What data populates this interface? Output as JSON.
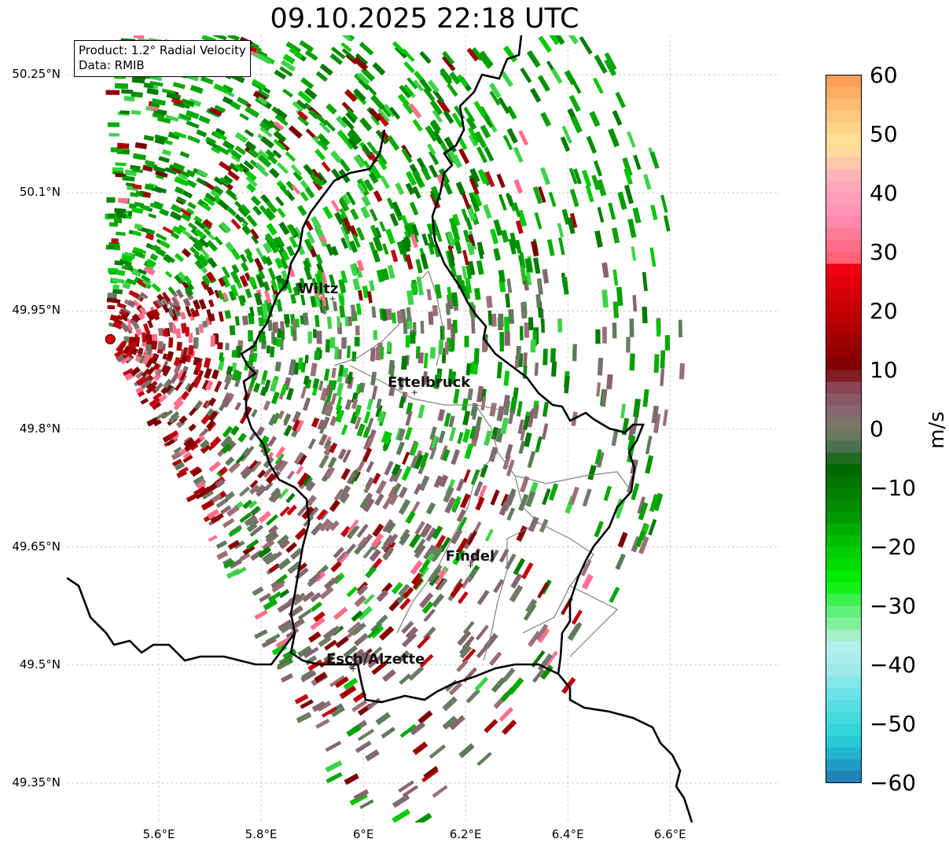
{
  "title": "09.10.2025 22:18 UTC",
  "info_box": {
    "product": "Product: 1.2° Radial Velocity",
    "data": "Data: RMIB"
  },
  "cities": [
    {
      "name": "Wiltz",
      "lon": 5.94,
      "lat": 49.966
    },
    {
      "name": "Ettelbruck",
      "lon": 6.1,
      "lat": 49.847
    },
    {
      "name": "Findel",
      "lon": 6.21,
      "lat": 49.627
    },
    {
      "name": "Esch/Alzette",
      "lon": 5.98,
      "lat": 49.496
    }
  ],
  "radar_site": {
    "lon": 5.505,
    "lat": 49.914
  },
  "axes": {
    "lon_range": [
      5.42,
      6.815
    ],
    "lat_range": [
      49.3,
      50.3
    ],
    "x_ticks": [
      "5.6°E",
      "5.8°E",
      "6°E",
      "6.2°E",
      "6.4°E",
      "6.6°E"
    ],
    "x_tick_values": [
      5.6,
      5.8,
      6.0,
      6.2,
      6.4,
      6.6
    ],
    "y_ticks": [
      "50.25°N",
      "50.1°N",
      "49.95°N",
      "49.8°N",
      "49.65°N",
      "49.5°N",
      "49.35°N"
    ],
    "y_tick_values": [
      50.25,
      50.1,
      49.95,
      49.8,
      49.65,
      49.5,
      49.35
    ]
  },
  "colorbar": {
    "label": "m/s",
    "vmin": -60,
    "vmax": 60,
    "ticks": [
      "60",
      "50",
      "40",
      "30",
      "20",
      "10",
      "0",
      "−10",
      "−20",
      "−30",
      "−40",
      "−50",
      "−60"
    ],
    "tick_values": [
      60,
      50,
      40,
      30,
      20,
      10,
      0,
      -10,
      -20,
      -30,
      -40,
      -50,
      -60
    ],
    "stops": [
      {
        "v": -60,
        "c": "#1f77b4"
      },
      {
        "v": -56,
        "c": "#22a8cc"
      },
      {
        "v": -52,
        "c": "#2ad6d8"
      },
      {
        "v": -46,
        "c": "#5fe0e2"
      },
      {
        "v": -40,
        "c": "#a8ecee"
      },
      {
        "v": -36,
        "c": "#b6f0ea"
      },
      {
        "v": -34,
        "c": "#8ff0a8"
      },
      {
        "v": -30,
        "c": "#52f06a"
      },
      {
        "v": -26,
        "c": "#00f000"
      },
      {
        "v": -20,
        "c": "#00c800"
      },
      {
        "v": -14,
        "c": "#008f00"
      },
      {
        "v": -6,
        "c": "#006400"
      },
      {
        "v": -4,
        "c": "#3f6f45"
      },
      {
        "v": 0,
        "c": "#787a6a"
      },
      {
        "v": 4,
        "c": "#8b6070"
      },
      {
        "v": 8,
        "c": "#8a3c48"
      },
      {
        "v": 10,
        "c": "#7a0000"
      },
      {
        "v": 18,
        "c": "#b50000"
      },
      {
        "v": 27,
        "c": "#f00010"
      },
      {
        "v": 28,
        "c": "#ff5a6e"
      },
      {
        "v": 36,
        "c": "#ff8fb4"
      },
      {
        "v": 42,
        "c": "#ffaabd"
      },
      {
        "v": 48,
        "c": "#ffe49a"
      },
      {
        "v": 54,
        "c": "#ffc27a"
      },
      {
        "v": 60,
        "c": "#ff9650"
      }
    ]
  },
  "colors": {
    "outbound_red": "#8b0000",
    "inbound_green": "#008f00",
    "zero_gray": "#7a7a6e",
    "border": "#000000",
    "district": "#808080",
    "grid": "#b0b0b0"
  }
}
